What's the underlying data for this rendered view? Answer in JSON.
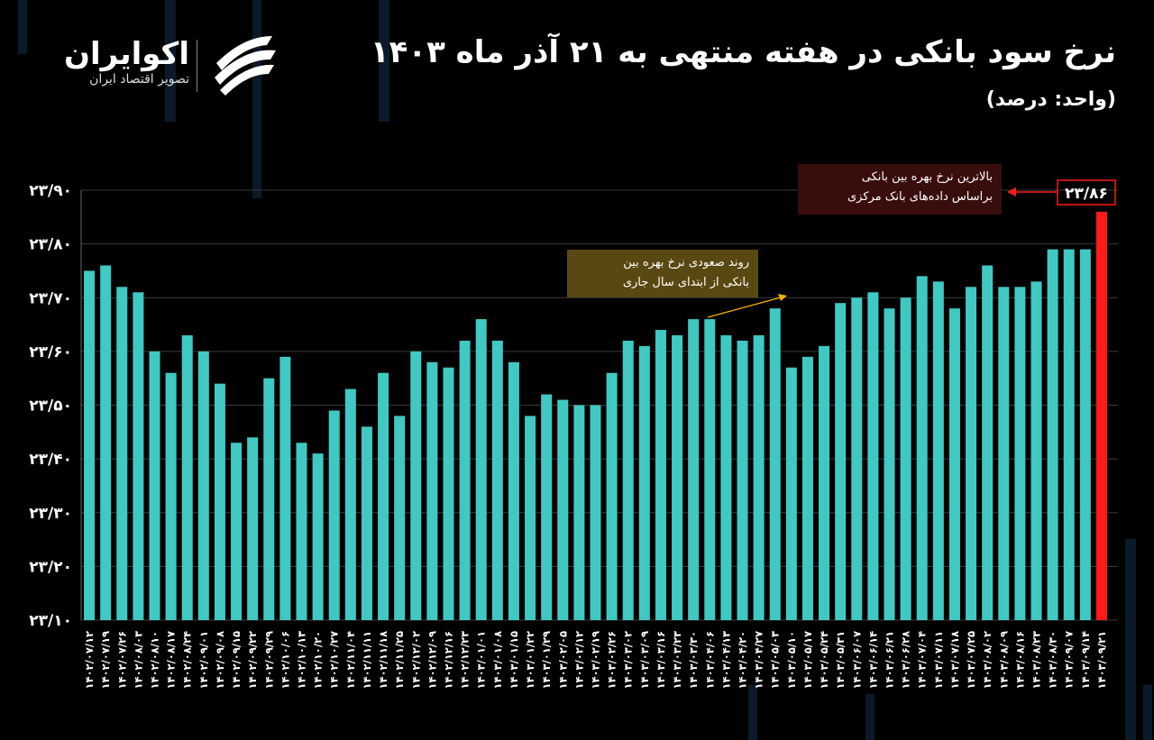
{
  "brand": {
    "name": "اکوایران",
    "tagline": "تصویر اقتصاد ایران"
  },
  "chart_data": {
    "type": "bar",
    "title": "نرخ سود بانکی در هفته منتهی به ۲۱ آذر ماه ۱۴۰۳",
    "subtitle": "(واحد: درصد)",
    "categories": [
      "۱۴۰۲/۰۷/۱۲",
      "۱۴۰۲/۰۷/۱۹",
      "۱۴۰۲/۰۷/۲۶",
      "۱۴۰۲/۰۸/۰۳",
      "۱۴۰۲/۰۸/۱۰",
      "۱۴۰۲/۰۸/۱۷",
      "۱۴۰۲/۰۸/۲۴",
      "۱۴۰۲/۰۹/۰۱",
      "۱۴۰۲/۰۹/۰۸",
      "۱۴۰۲/۰۹/۱۵",
      "۱۴۰۲/۰۹/۲۲",
      "۱۴۰۲/۰۹/۲۹",
      "۱۴۰۲/۱۰/۰۶",
      "۱۴۰۲/۱۰/۱۳",
      "۱۴۰۲/۱۰/۲۰",
      "۱۴۰۲/۱۰/۲۷",
      "۱۴۰۲/۱۱/۰۴",
      "۱۴۰۲/۱۱/۱۱",
      "۱۴۰۲/۱۱/۱۸",
      "۱۴۰۲/۱۱/۲۵",
      "۱۴۰۲/۱۲/۰۲",
      "۱۴۰۲/۱۲/۰۹",
      "۱۴۰۲/۱۲/۱۶",
      "۱۴۰۲/۱۲/۲۳",
      "۱۴۰۳/۰۱/۰۱",
      "۱۴۰۳/۰۱/۰۸",
      "۱۴۰۳/۰۱/۱۵",
      "۱۴۰۳/۰۱/۲۲",
      "۱۴۰۳/۰۱/۲۹",
      "۱۴۰۳/۰۲/۰۵",
      "۱۴۰۳/۰۲/۱۲",
      "۱۴۰۳/۰۲/۱۹",
      "۱۴۰۳/۰۲/۲۶",
      "۱۴۰۳/۰۳/۰۲",
      "۱۴۰۳/۰۳/۰۹",
      "۱۴۰۳/۰۳/۱۶",
      "۱۴۰۳/۰۳/۲۳",
      "۱۴۰۳/۰۳/۳۰",
      "۱۴۰۳/۰۴/۰۶",
      "۱۴۰۳/۰۴/۱۳",
      "۱۴۰۳/۰۴/۲۰",
      "۱۴۰۳/۰۴/۲۷",
      "۱۴۰۳/۰۵/۰۳",
      "۱۴۰۳/۰۵/۱۰",
      "۱۴۰۳/۰۵/۱۷",
      "۱۴۰۳/۰۵/۲۴",
      "۱۴۰۳/۰۵/۳۱",
      "۱۴۰۳/۰۶/۰۷",
      "۱۴۰۳/۰۶/۱۴",
      "۱۴۰۳/۰۶/۲۱",
      "۱۴۰۳/۰۶/۲۸",
      "۱۴۰۳/۰۷/۰۴",
      "۱۴۰۳/۰۷/۱۱",
      "۱۴۰۳/۰۷/۱۸",
      "۱۴۰۳/۰۷/۲۵",
      "۱۴۰۳/۰۸/۰۲",
      "۱۴۰۳/۰۸/۰۹",
      "۱۴۰۳/۰۸/۱۶",
      "۱۴۰۳/۰۸/۲۳",
      "۱۴۰۳/۰۸/۳۰",
      "۱۴۰۳/۰۹/۰۷",
      "۱۴۰۳/۰۹/۱۴",
      "۱۴۰۳/۰۹/۲۱"
    ],
    "values": [
      23.75,
      23.76,
      23.72,
      23.71,
      23.6,
      23.56,
      23.63,
      23.6,
      23.54,
      23.43,
      23.44,
      23.55,
      23.59,
      23.43,
      23.41,
      23.49,
      23.53,
      23.46,
      23.56,
      23.48,
      23.6,
      23.58,
      23.57,
      23.62,
      23.66,
      23.62,
      23.58,
      23.48,
      23.52,
      23.51,
      23.5,
      23.5,
      23.56,
      23.62,
      23.61,
      23.64,
      23.63,
      23.66,
      23.66,
      23.63,
      23.62,
      23.63,
      23.68,
      23.57,
      23.59,
      23.61,
      23.69,
      23.7,
      23.71,
      23.68,
      23.7,
      23.74,
      23.73,
      23.68,
      23.72,
      23.76,
      23.72,
      23.72,
      23.73,
      23.79,
      23.79,
      23.79,
      23.86
    ],
    "value_labels": [
      null,
      null,
      null,
      null,
      null,
      null,
      null,
      null,
      null,
      null,
      null,
      null,
      null,
      null,
      null,
      null,
      null,
      null,
      null,
      null,
      null,
      null,
      null,
      null,
      null,
      null,
      null,
      null,
      null,
      null,
      null,
      null,
      null,
      null,
      null,
      null,
      null,
      null,
      null,
      null,
      null,
      null,
      null,
      null,
      null,
      null,
      null,
      null,
      null,
      null,
      null,
      null,
      null,
      null,
      null,
      null,
      null,
      null,
      null,
      null,
      null,
      null,
      "۲۳/۸۶"
    ],
    "color": "#40c9c3",
    "highlight_color": "#ff1a1a",
    "ylim": [
      23.1,
      23.9
    ],
    "yticks": [
      {
        "value": 23.1,
        "label": "۲۳/۱۰"
      },
      {
        "value": 23.2,
        "label": "۲۳/۲۰"
      },
      {
        "value": 23.3,
        "label": "۲۳/۳۰"
      },
      {
        "value": 23.4,
        "label": "۲۳/۴۰"
      },
      {
        "value": 23.5,
        "label": "۲۳/۵۰"
      },
      {
        "value": 23.6,
        "label": "۲۳/۶۰"
      },
      {
        "value": 23.7,
        "label": "۲۳/۷۰"
      },
      {
        "value": 23.8,
        "label": "۲۳/۸۰"
      },
      {
        "value": 23.9,
        "label": "۲۳/۹۰"
      }
    ],
    "grid": true,
    "annotations": [
      {
        "lines": [
          "بالاترین نرخ بهره بین بانکی",
          "براساس داده‌های بانک مرکزی"
        ]
      },
      {
        "lines": [
          "روند صعودی نرخ بهره بین",
          "بانکی از ابتدای سال جاری"
        ]
      }
    ]
  }
}
